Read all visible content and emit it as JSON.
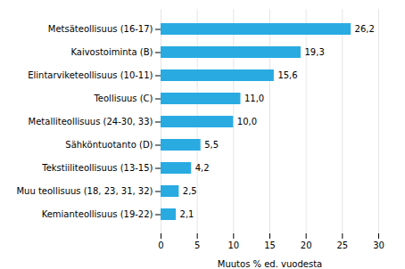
{
  "chart_data": {
    "type": "bar",
    "orientation": "horizontal",
    "categories": [
      "Kemianteollisuus (19-22)",
      "Muu teollisuus (18, 23, 31, 32)",
      "Tekstiiliteollisuus (13-15)",
      "Sähköntuotanto (D)",
      "Metalliteollisuus (24-30, 33)",
      "Teollisuus (C)",
      "Elintarviketeollisuus (10-11)",
      "Kaivostoiminta (B)",
      "Metsäteollisuus (16-17)"
    ],
    "values": [
      2.1,
      2.5,
      4.2,
      5.5,
      10.0,
      11.0,
      15.6,
      19.3,
      26.2
    ],
    "value_labels": [
      "2,1",
      "2,5",
      "4,2",
      "5,5",
      "10,0",
      "11,0",
      "15,6",
      "19,3",
      "26,2"
    ],
    "data_labels": true,
    "color": "#29abe2",
    "xlabel": "Muutos % ed. vuodesta",
    "xlim": [
      0,
      30
    ],
    "xticks": [
      0,
      5,
      10,
      15,
      20,
      25,
      30
    ],
    "grid": true
  }
}
